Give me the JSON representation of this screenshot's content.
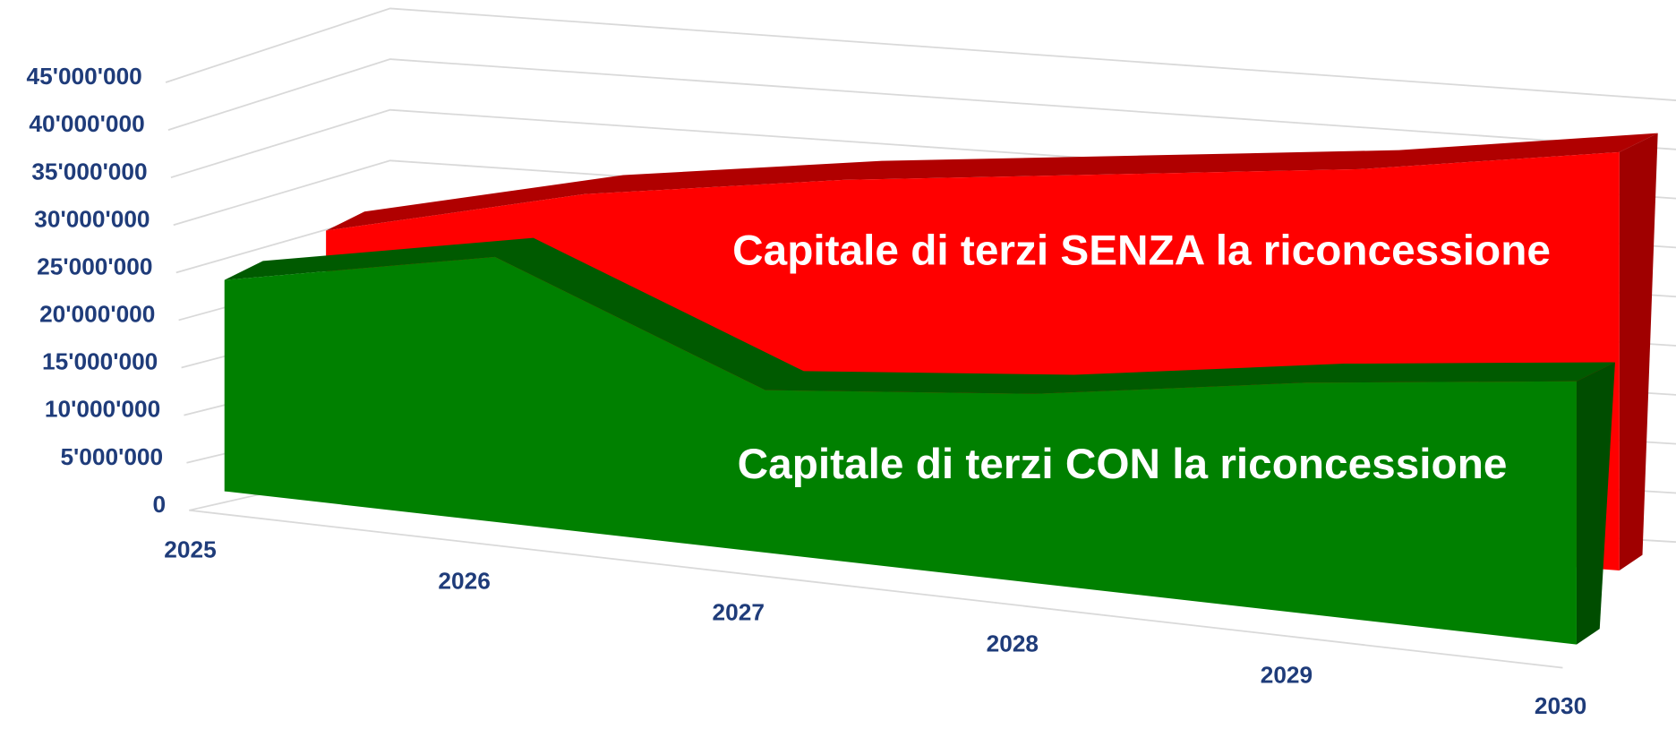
{
  "chart_data": {
    "type": "area3d",
    "categories": [
      "2025",
      "2026",
      "2027",
      "2028",
      "2029",
      "2030"
    ],
    "series": [
      {
        "name": "Capitale di terzi SENZA la riconcessione",
        "color": "#ff0000",
        "values": [
          30000000,
          34000000,
          35000000,
          35000000,
          35000000,
          36000000
        ]
      },
      {
        "name": "Capitale di terzi CON la riconcessione",
        "color": "#008000",
        "values": [
          24000000,
          27000000,
          15000000,
          16000000,
          18000000,
          19000000
        ]
      }
    ],
    "ylim": [
      0,
      45000000
    ],
    "yticks": [
      0,
      {
        "value": 5000000,
        "label": "5'000'000"
      },
      {
        "value": 10000000,
        "label": "10'000'000"
      },
      {
        "value": 15000000,
        "label": "15'000'000"
      },
      {
        "value": 20000000,
        "label": "20'000'000"
      },
      {
        "value": 25000000,
        "label": "25'000'000"
      },
      {
        "value": 30000000,
        "label": "30'000'000"
      },
      {
        "value": 35000000,
        "label": "35'000'000"
      },
      {
        "value": 40000000,
        "label": "40'000'000"
      },
      {
        "value": 45000000,
        "label": "45'000'000"
      }
    ],
    "grid": true
  }
}
